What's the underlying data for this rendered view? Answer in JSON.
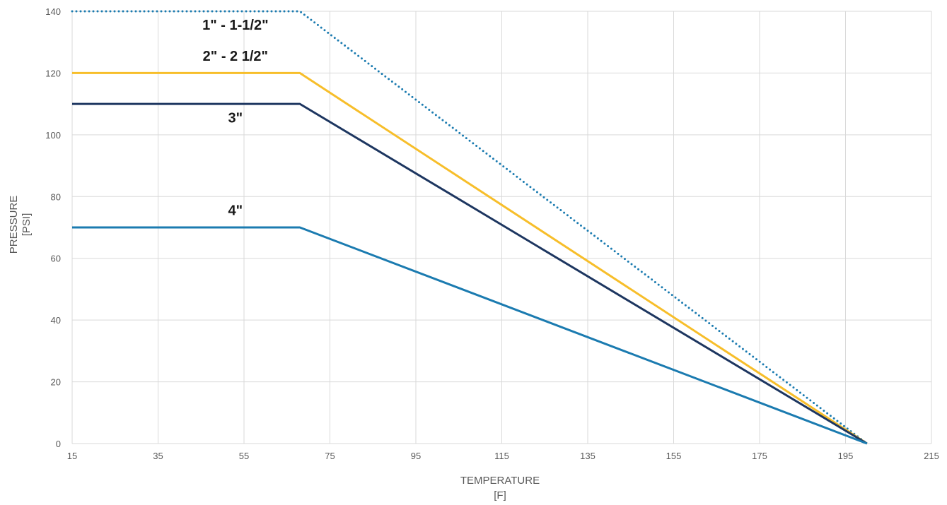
{
  "chart_data": {
    "type": "line",
    "xlabel": [
      "TEMPERATURE",
      "[F]"
    ],
    "ylabel": [
      "PRESSURE",
      "[PSI]"
    ],
    "xlim": [
      15,
      215
    ],
    "ylim": [
      0,
      140
    ],
    "xticks": [
      15,
      35,
      55,
      75,
      95,
      115,
      135,
      155,
      175,
      195,
      215
    ],
    "yticks": [
      0,
      20,
      40,
      60,
      80,
      100,
      120,
      140
    ],
    "grid": true,
    "series": [
      {
        "name": "1\" - 1-1/2\"",
        "color": "#1b7bb0",
        "style": "dotted",
        "x": [
          15,
          68,
          200
        ],
        "y": [
          140,
          140,
          0
        ]
      },
      {
        "name": "2\" - 2 1/2\"",
        "color": "#f7be2a",
        "style": "solid",
        "x": [
          15,
          68,
          200
        ],
        "y": [
          120,
          120,
          0
        ]
      },
      {
        "name": "3\"",
        "color": "#1d3660",
        "style": "solid",
        "x": [
          15,
          68,
          200
        ],
        "y": [
          110,
          110,
          0
        ]
      },
      {
        "name": "4\"",
        "color": "#1b7bb0",
        "style": "solid",
        "x": [
          15,
          68,
          200
        ],
        "y": [
          70,
          70,
          0
        ]
      }
    ],
    "annotations": [
      {
        "text": "1\" - 1-1/2\"",
        "x": 53,
        "y": 134
      },
      {
        "text": "2\" - 2 1/2\"",
        "x": 53,
        "y": 124
      },
      {
        "text": "3\"",
        "x": 53,
        "y": 104
      },
      {
        "text": "4\"",
        "x": 53,
        "y": 74
      }
    ]
  }
}
